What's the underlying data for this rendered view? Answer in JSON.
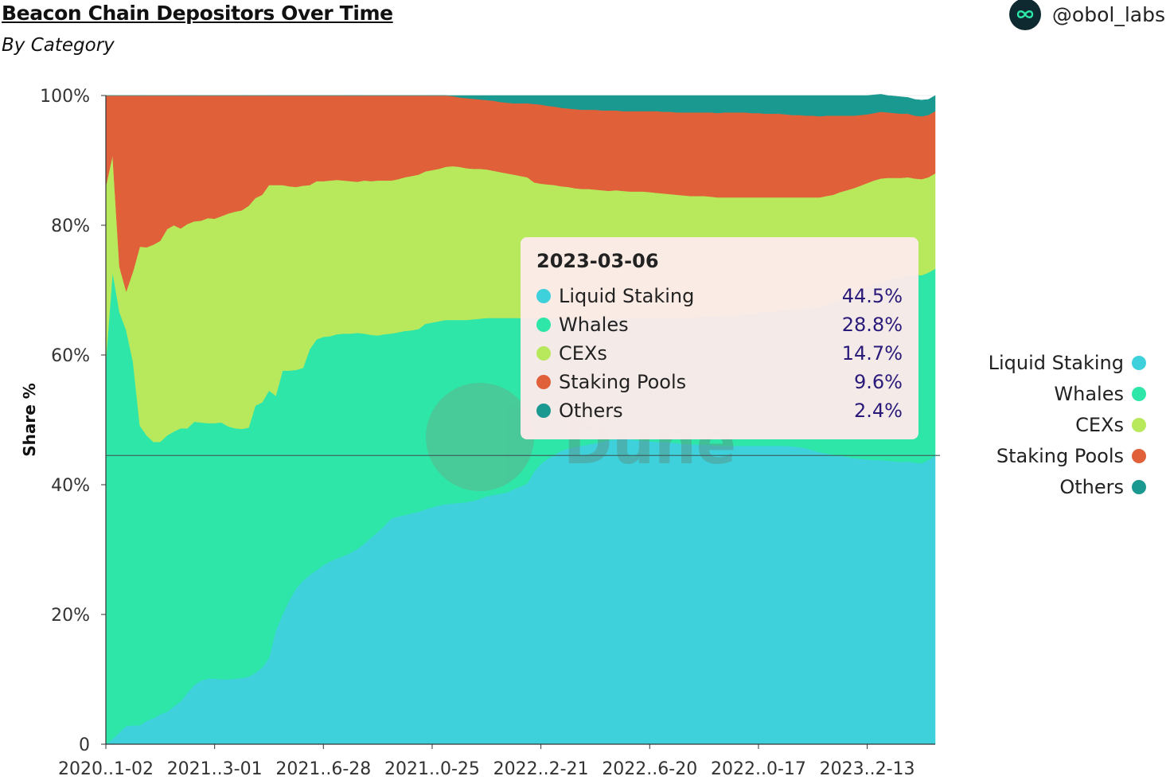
{
  "header": {
    "title": "Beacon Chain Depositors Over Time",
    "subtitle": "By Category",
    "brand": "@obol_labs",
    "brand_icon": "infinity-icon"
  },
  "watermark": "Dune",
  "tooltip": {
    "date": "2023-03-06",
    "rows": [
      {
        "label": "Liquid Staking",
        "value": "44.5%",
        "color": "#3ed1dc"
      },
      {
        "label": "Whales",
        "value": "28.8%",
        "color": "#2ee6a8"
      },
      {
        "label": "CEXs",
        "value": "14.7%",
        "color": "#b8e95c"
      },
      {
        "label": "Staking Pools",
        "value": "9.6%",
        "color": "#e0603a"
      },
      {
        "label": "Others",
        "value": "2.4%",
        "color": "#1a9990"
      }
    ]
  },
  "chart_data": {
    "type": "area",
    "stacked": true,
    "title": "Beacon Chain Depositors Over Time",
    "subtitle": "By Category",
    "ylabel": "Share %",
    "xlabel": "",
    "ylim": [
      0,
      100
    ],
    "yticks": [
      "0",
      "20%",
      "40%",
      "60%",
      "80%",
      "100%"
    ],
    "xticks": [
      "2020..1-02",
      "2021..3-01",
      "2021..6-28",
      "2021..0-25",
      "2022..2-21",
      "2022..6-20",
      "2022..0-17",
      "2023..2-13"
    ],
    "legend_position": "right",
    "grid": true,
    "cursor_date": "2023-03-06",
    "cursor_value": 44.5,
    "x": [
      "2020-11-02",
      "2020-11-09",
      "2020-11-16",
      "2020-11-23",
      "2020-11-30",
      "2020-12-07",
      "2020-12-14",
      "2020-12-21",
      "2020-12-28",
      "2021-01-04",
      "2021-01-11",
      "2021-01-18",
      "2021-01-25",
      "2021-02-01",
      "2021-02-08",
      "2021-02-15",
      "2021-02-22",
      "2021-03-01",
      "2021-03-08",
      "2021-03-15",
      "2021-03-22",
      "2021-03-29",
      "2021-04-05",
      "2021-04-12",
      "2021-04-19",
      "2021-04-26",
      "2021-05-03",
      "2021-05-10",
      "2021-05-17",
      "2021-05-24",
      "2021-05-31",
      "2021-06-07",
      "2021-06-14",
      "2021-06-21",
      "2021-06-28",
      "2021-07-05",
      "2021-07-12",
      "2021-07-19",
      "2021-07-26",
      "2021-08-02",
      "2021-08-09",
      "2021-08-16",
      "2021-08-23",
      "2021-08-30",
      "2021-09-06",
      "2021-09-13",
      "2021-09-20",
      "2021-09-27",
      "2021-10-04",
      "2021-10-11",
      "2021-10-18",
      "2021-10-25",
      "2021-11-01",
      "2021-11-08",
      "2021-11-15",
      "2021-11-22",
      "2021-11-29",
      "2021-12-06",
      "2021-12-13",
      "2021-12-20",
      "2021-12-27",
      "2022-01-03",
      "2022-01-10",
      "2022-01-17",
      "2022-01-24",
      "2022-01-31",
      "2022-02-07",
      "2022-02-14",
      "2022-02-21",
      "2022-02-28",
      "2022-03-07",
      "2022-03-14",
      "2022-03-21",
      "2022-03-28",
      "2022-04-04",
      "2022-04-11",
      "2022-04-18",
      "2022-04-25",
      "2022-05-02",
      "2022-05-09",
      "2022-05-16",
      "2022-05-23",
      "2022-05-30",
      "2022-06-06",
      "2022-06-13",
      "2022-06-20",
      "2022-06-27",
      "2022-07-04",
      "2022-07-11",
      "2022-07-18",
      "2022-07-25",
      "2022-08-01",
      "2022-08-08",
      "2022-08-15",
      "2022-08-22",
      "2022-08-29",
      "2022-09-05",
      "2022-09-12",
      "2022-09-19",
      "2022-09-26",
      "2022-10-03",
      "2022-10-10",
      "2022-10-17",
      "2022-10-24",
      "2022-10-31",
      "2022-11-07",
      "2022-11-14",
      "2022-11-21",
      "2022-11-28",
      "2022-12-05",
      "2022-12-12",
      "2022-12-19",
      "2022-12-26",
      "2023-01-02",
      "2023-01-09",
      "2023-01-16",
      "2023-01-23",
      "2023-01-30",
      "2023-02-06",
      "2023-02-13",
      "2023-02-20",
      "2023-02-27",
      "2023-03-06"
    ],
    "series": [
      {
        "name": "Liquid Staking",
        "color": "#3ed1dc",
        "values": [
          0,
          0.8,
          1.8,
          2.8,
          2.9,
          2.9,
          3.6,
          4.0,
          4.6,
          5.0,
          5.8,
          6.6,
          7.9,
          9.1,
          9.8,
          10.1,
          10.1,
          10.0,
          10.0,
          10.1,
          10.2,
          10.4,
          11.0,
          11.8,
          13.3,
          17.5,
          20.0,
          22.2,
          24.0,
          25.2,
          26.1,
          26.8,
          27.6,
          28.2,
          28.6,
          29.0,
          29.5,
          30.1,
          30.9,
          31.8,
          32.7,
          33.7,
          34.8,
          35.1,
          35.3,
          35.6,
          35.8,
          36.2,
          36.5,
          36.8,
          37.0,
          37.1,
          37.2,
          37.3,
          37.5,
          37.8,
          38.2,
          38.4,
          38.6,
          38.8,
          39.3,
          39.7,
          40.2,
          42.0,
          43.2,
          44.0,
          44.6,
          45.2,
          45.6,
          45.8,
          46.0,
          46.2,
          46.4,
          46.6,
          46.9,
          47.0,
          47.1,
          47.0,
          46.9,
          46.8,
          46.7,
          46.6,
          46.6,
          46.5,
          46.4,
          46.3,
          46.2,
          46.2,
          46.2,
          46.1,
          46.0,
          46.0,
          46.0,
          46.0,
          46.0,
          46.0,
          46.0,
          46.0,
          46.0,
          46.0,
          46.0,
          45.9,
          45.8,
          45.6,
          45.3,
          45.0,
          44.8,
          44.6,
          44.5,
          44.3,
          44.1,
          44.0,
          43.9,
          43.8,
          43.8,
          43.7,
          43.6,
          43.5,
          43.6,
          43.4,
          43.3,
          43.8,
          44.5
        ]
      },
      {
        "name": "Whales",
        "color": "#2ee6a8",
        "values": [
          59.0,
          72.0,
          64.8,
          61.0,
          56.0,
          46.2,
          44.0,
          42.6,
          42.0,
          42.6,
          42.4,
          42.1,
          40.8,
          40.6,
          39.8,
          39.4,
          39.4,
          39.6,
          39.0,
          38.6,
          38.4,
          38.4,
          41.2,
          40.9,
          41.2,
          36.2,
          37.6,
          35.4,
          33.7,
          32.8,
          34.8,
          35.6,
          35.2,
          34.7,
          34.6,
          34.3,
          33.8,
          33.3,
          32.4,
          31.3,
          30.3,
          29.5,
          28.5,
          28.4,
          28.4,
          28.2,
          28.2,
          28.6,
          28.5,
          28.4,
          28.4,
          28.3,
          28.2,
          28.1,
          28.0,
          27.8,
          27.5,
          27.3,
          27.1,
          26.9,
          26.4,
          26.0,
          25.5,
          23.6,
          22.4,
          21.6,
          21.0,
          20.4,
          20.0,
          19.7,
          19.5,
          19.3,
          19.1,
          18.9,
          18.6,
          18.6,
          18.5,
          18.6,
          18.8,
          18.9,
          19.0,
          19.1,
          19.1,
          19.2,
          19.3,
          19.4,
          19.5,
          19.6,
          19.7,
          19.8,
          19.9,
          20.0,
          20.1,
          20.2,
          20.3,
          20.4,
          20.5,
          20.6,
          20.7,
          20.8,
          20.9,
          21.1,
          21.3,
          21.6,
          22.0,
          22.4,
          22.9,
          23.4,
          24.0,
          24.6,
          25.2,
          25.8,
          26.4,
          27.0,
          27.5,
          27.9,
          28.2,
          28.5,
          28.7,
          28.9,
          29.0,
          28.9,
          28.8
        ]
      },
      {
        "name": "CEXs",
        "color": "#b8e95c",
        "values": [
          27.0,
          18.0,
          7.0,
          6.0,
          14.0,
          27.6,
          29.0,
          30.4,
          31.0,
          31.8,
          31.8,
          30.8,
          31.5,
          30.9,
          31.1,
          31.6,
          31.5,
          31.8,
          32.8,
          33.4,
          33.7,
          34.2,
          32.0,
          32.0,
          31.7,
          32.5,
          28.6,
          28.4,
          28.2,
          28.1,
          25.3,
          24.4,
          24.0,
          24.0,
          23.8,
          23.6,
          23.5,
          23.3,
          23.6,
          23.7,
          23.9,
          23.7,
          23.6,
          23.6,
          23.7,
          23.8,
          23.8,
          23.5,
          23.5,
          23.5,
          23.6,
          23.7,
          23.6,
          23.4,
          23.2,
          23.1,
          22.9,
          22.7,
          22.5,
          22.3,
          22.1,
          21.9,
          21.7,
          21.0,
          20.8,
          20.7,
          20.6,
          20.4,
          20.3,
          20.2,
          20.1,
          20.1,
          20.0,
          19.9,
          19.8,
          19.8,
          19.7,
          19.6,
          19.5,
          19.5,
          19.4,
          19.3,
          19.2,
          19.1,
          19.0,
          18.9,
          18.8,
          18.7,
          18.6,
          18.5,
          18.4,
          18.3,
          18.2,
          18.1,
          18.0,
          17.9,
          17.8,
          17.7,
          17.6,
          17.5,
          17.4,
          17.3,
          17.2,
          17.1,
          17.0,
          16.9,
          16.8,
          16.7,
          16.6,
          16.5,
          16.4,
          16.3,
          16.2,
          16.1,
          15.9,
          15.7,
          15.5,
          15.3,
          15.1,
          14.9,
          14.8,
          14.7,
          14.7
        ]
      },
      {
        "name": "Staking Pools",
        "color": "#e0603a",
        "values": [
          14.0,
          9.2,
          26.4,
          30.2,
          27.1,
          23.3,
          23.4,
          23.0,
          22.4,
          20.6,
          20.0,
          20.5,
          19.8,
          19.4,
          19.3,
          18.9,
          19.0,
          18.6,
          18.2,
          17.9,
          17.7,
          17.0,
          15.8,
          15.3,
          13.8,
          13.8,
          13.8,
          14.0,
          14.1,
          13.9,
          13.8,
          13.2,
          13.2,
          13.1,
          13.0,
          13.1,
          13.2,
          13.3,
          13.1,
          13.2,
          13.1,
          13.1,
          13.1,
          12.9,
          12.6,
          12.4,
          12.2,
          11.7,
          11.5,
          11.3,
          11.0,
          10.8,
          10.7,
          10.8,
          10.8,
          10.7,
          10.7,
          10.8,
          10.8,
          10.9,
          11.0,
          11.2,
          11.4,
          12.1,
          12.2,
          12.1,
          12.1,
          12.1,
          12.1,
          12.2,
          12.2,
          12.2,
          12.3,
          12.3,
          12.4,
          12.3,
          12.3,
          12.4,
          12.4,
          12.4,
          12.5,
          12.6,
          12.6,
          12.7,
          12.7,
          12.8,
          12.9,
          12.9,
          12.9,
          13.0,
          13.0,
          13.1,
          13.1,
          13.1,
          13.1,
          13.0,
          13.0,
          12.9,
          12.9,
          12.9,
          12.8,
          12.7,
          12.7,
          12.6,
          12.6,
          12.5,
          12.4,
          12.2,
          11.8,
          11.5,
          11.2,
          10.9,
          10.6,
          10.4,
          10.3,
          10.1,
          10.0,
          9.9,
          9.8,
          9.7,
          9.7,
          9.6,
          9.6
        ]
      },
      {
        "name": "Others",
        "color": "#1a9990",
        "values": [
          0,
          0,
          0,
          0,
          0,
          0,
          0,
          0,
          0,
          0,
          0,
          0,
          0,
          0,
          0,
          0,
          0,
          0,
          0,
          0,
          0,
          0,
          0,
          0,
          0,
          0,
          0,
          0,
          0,
          0,
          0,
          0,
          0,
          0,
          0,
          0,
          0,
          0,
          0,
          0,
          0,
          0,
          0,
          0,
          0,
          0,
          0,
          0,
          0,
          0,
          0,
          0.1,
          0.3,
          0.4,
          0.5,
          0.6,
          0.7,
          0.8,
          1.0,
          1.1,
          1.2,
          1.2,
          1.2,
          1.3,
          1.4,
          1.6,
          1.7,
          1.9,
          2.0,
          2.1,
          2.2,
          2.2,
          2.2,
          2.3,
          2.3,
          2.3,
          2.4,
          2.4,
          2.4,
          2.4,
          2.4,
          2.4,
          2.5,
          2.5,
          2.6,
          2.6,
          2.6,
          2.6,
          2.6,
          2.6,
          2.7,
          2.6,
          2.6,
          2.6,
          2.6,
          2.7,
          2.7,
          2.8,
          2.8,
          2.8,
          2.9,
          3.0,
          3.0,
          3.1,
          3.1,
          3.2,
          3.1,
          3.1,
          3.1,
          3.1,
          3.1,
          3.0,
          2.9,
          2.8,
          2.7,
          2.6,
          2.6,
          2.6,
          2.5,
          2.5,
          2.5,
          2.4,
          2.4
        ]
      }
    ]
  }
}
